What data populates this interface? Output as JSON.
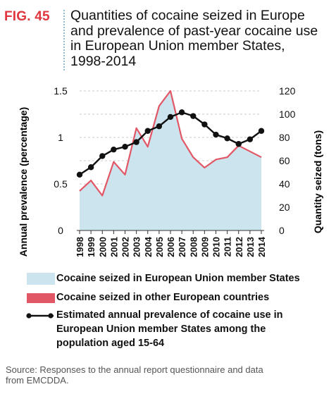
{
  "header": {
    "fig_label": "FIG. 45",
    "title_lines": [
      "Quantities of cocaine seized in Europe",
      "and prevalence of past-year cocaine use",
      "in European Union member States,",
      "1998-2014"
    ]
  },
  "chart_data": {
    "type": "area",
    "x": [
      "1998",
      "1999",
      "2000",
      "2001",
      "2002",
      "2003",
      "2004",
      "2005",
      "2006",
      "2007",
      "2008",
      "2009",
      "2010",
      "2011",
      "2012",
      "2013",
      "2014"
    ],
    "ylabel_left": "Annual prevalence (percentage)",
    "ylabel_right": "Quantity seized (tons)",
    "y_left_ticks": [
      "0",
      "0.5",
      "1",
      "1.5"
    ],
    "y_right_ticks": [
      "0",
      "20",
      "40",
      "60",
      "80",
      "100",
      "120"
    ],
    "ylim_left": [
      0,
      1.5
    ],
    "ylim_right": [
      0,
      120
    ],
    "grid": "dashed horizontal",
    "series": [
      {
        "name": "Cocaine seized in European Union member States",
        "kind": "area",
        "axis": "right",
        "color": "#cce4ed",
        "values": [
          34,
          43,
          30,
          59,
          48,
          88,
          72,
          107,
          120,
          79,
          63,
          54,
          61,
          63,
          73,
          68,
          63
        ]
      },
      {
        "name": "Cocaine seized in other European countries",
        "kind": "line",
        "axis": "right",
        "color": "#e25766",
        "values": [
          34,
          43,
          30,
          59,
          48,
          88,
          72,
          107,
          120,
          79,
          63,
          54,
          61,
          63,
          73,
          68,
          63
        ]
      },
      {
        "name": "Estimated annual prevalence of cocaine use in European Union member States among the population aged 15-64",
        "kind": "line-markers",
        "axis": "left",
        "color": "#111111",
        "values": [
          0.6,
          0.68,
          0.8,
          0.87,
          0.9,
          0.95,
          1.07,
          1.12,
          1.22,
          1.27,
          1.23,
          1.14,
          1.03,
          0.99,
          0.93,
          0.98,
          1.07
        ]
      }
    ]
  },
  "legend": {
    "items": [
      "Cocaine seized in European Union member States",
      "Cocaine seized in other European countries"
    ],
    "prevalence_lines": [
      "Estimated annual prevalence of cocaine use in",
      "European Union member States among the",
      "population aged 15-64"
    ]
  },
  "source": {
    "lines": [
      "Source: Responses to the annual report questionnaire and data",
      "from EMCDDA."
    ]
  }
}
